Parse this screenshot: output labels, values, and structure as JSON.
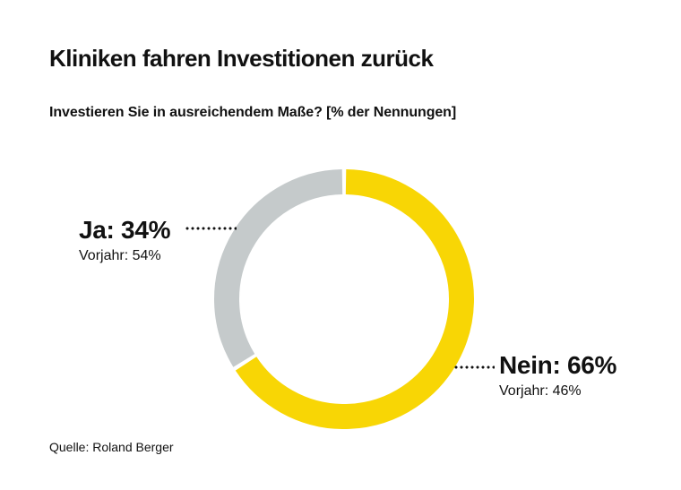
{
  "chart_data": {
    "type": "pie",
    "variant": "donut",
    "title": "Kliniken fahren Investitionen zurück",
    "subtitle": "Investieren Sie in ausreichendem Maße? [% der Nennungen]",
    "unit": "% der Nennungen",
    "start_angle": "12-oclock",
    "direction": "clockwise",
    "legend": "none",
    "text_color": "#111111",
    "background_color": "#ffffff",
    "donut": {
      "outer_radius_px": 145,
      "ring_thickness_px": 28,
      "gap_color": "#ffffff",
      "gap_degrees": 1.8
    },
    "slices": [
      {
        "label": "Nein",
        "value": 66,
        "vorjahr": 46,
        "color": "#F8D605",
        "callout_main": "Nein: 66%",
        "callout_sub": "Vorjahr: 46%"
      },
      {
        "label": "Ja",
        "value": 34,
        "vorjahr": 54,
        "color": "#C5CACB",
        "callout_main": "Ja: 34%",
        "callout_sub": "Vorjahr: 54%"
      }
    ],
    "source": "Quelle: Roland Berger"
  }
}
